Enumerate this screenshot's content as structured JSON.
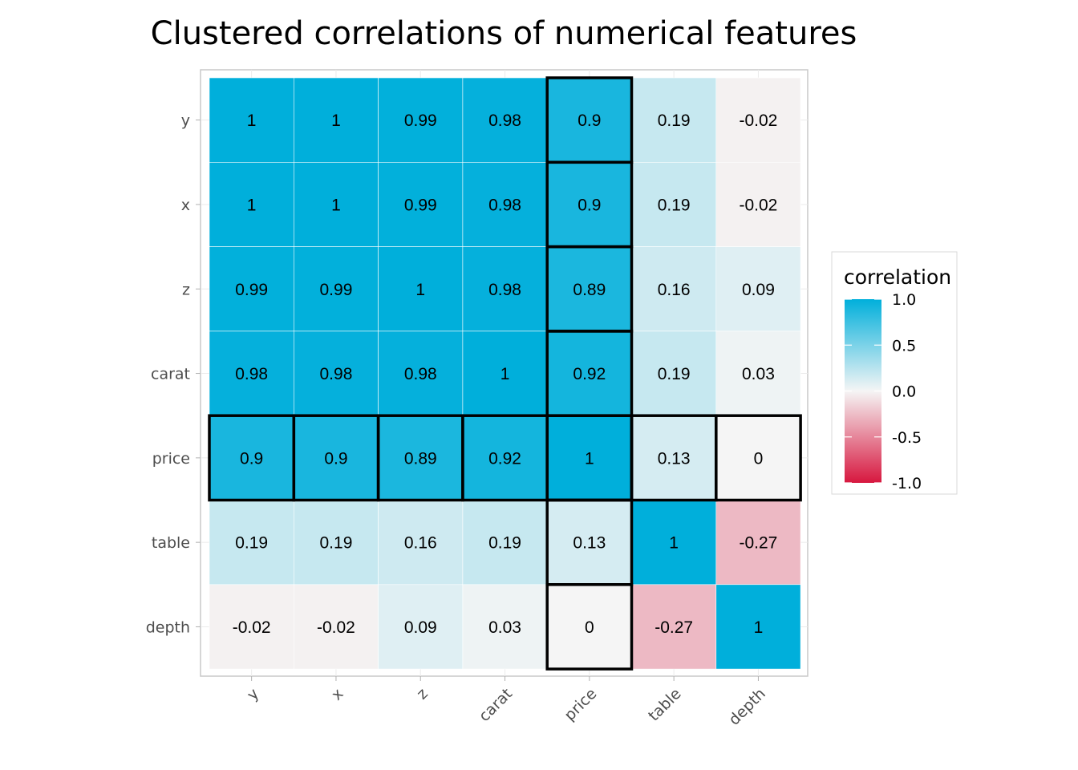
{
  "chart_data": {
    "type": "heatmap",
    "title": "Clustered correlations of numerical features",
    "rows": [
      "y",
      "x",
      "z",
      "carat",
      "price",
      "table",
      "depth"
    ],
    "columns": [
      "y",
      "x",
      "z",
      "carat",
      "price",
      "table",
      "depth"
    ],
    "values": [
      [
        1,
        1,
        0.99,
        0.98,
        0.9,
        0.19,
        -0.02
      ],
      [
        1,
        1,
        0.99,
        0.98,
        0.9,
        0.19,
        -0.02
      ],
      [
        0.99,
        0.99,
        1,
        0.98,
        0.89,
        0.16,
        0.09
      ],
      [
        0.98,
        0.98,
        0.98,
        1,
        0.92,
        0.19,
        0.03
      ],
      [
        0.9,
        0.9,
        0.89,
        0.92,
        1,
        0.13,
        0
      ],
      [
        0.19,
        0.19,
        0.16,
        0.19,
        0.13,
        1,
        -0.27
      ],
      [
        -0.02,
        -0.02,
        0.09,
        0.03,
        0,
        -0.27,
        1
      ]
    ],
    "highlighted_feature": "price",
    "legend": {
      "title": "correlation",
      "ticks": [
        "1.0",
        "0.5",
        "0.0",
        "-0.5",
        "-1.0"
      ],
      "range": [
        -1,
        1
      ],
      "position": "right"
    },
    "colors": {
      "high": "#00AFDB",
      "mid": "#F5F5F5",
      "low": "#D7173F",
      "highlight_border": "#000000",
      "panel_border": "#c8c8c8"
    }
  }
}
